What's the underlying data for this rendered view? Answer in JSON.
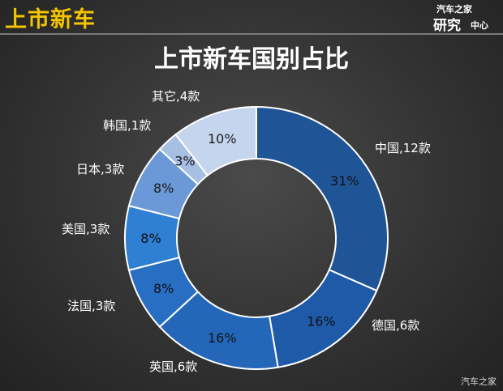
{
  "header": {
    "title": "上市新车"
  },
  "logo": {
    "line1": "汽车之家",
    "line2": "研究",
    "line3": "中心"
  },
  "watermark": "汽车之家",
  "chart_data": {
    "type": "pie",
    "variant": "donut",
    "title": "上市新车国别占比",
    "slices": [
      {
        "label": "中国,12款",
        "country": "中国",
        "count": 12,
        "percent": "31%",
        "color": "#1f5596"
      },
      {
        "label": "德国,6款",
        "country": "德国",
        "count": 6,
        "percent": "16%",
        "color": "#1e5aa7"
      },
      {
        "label": "英国,6款",
        "country": "英国",
        "count": 6,
        "percent": "16%",
        "color": "#2467b8"
      },
      {
        "label": "法国,3款",
        "country": "法国",
        "count": 3,
        "percent": "8%",
        "color": "#286fc3"
      },
      {
        "label": "美国,3款",
        "country": "美国",
        "count": 3,
        "percent": "8%",
        "color": "#2f7fd2"
      },
      {
        "label": "日本,3款",
        "country": "日本",
        "count": 3,
        "percent": "8%",
        "color": "#6b98d6"
      },
      {
        "label": "韩国,1款",
        "country": "韩国",
        "count": 1,
        "percent": "3%",
        "color": "#a7bfe3"
      },
      {
        "label": "其它,4款",
        "country": "其它",
        "count": 4,
        "percent": "10%",
        "color": "#c6d5ee"
      }
    ]
  }
}
